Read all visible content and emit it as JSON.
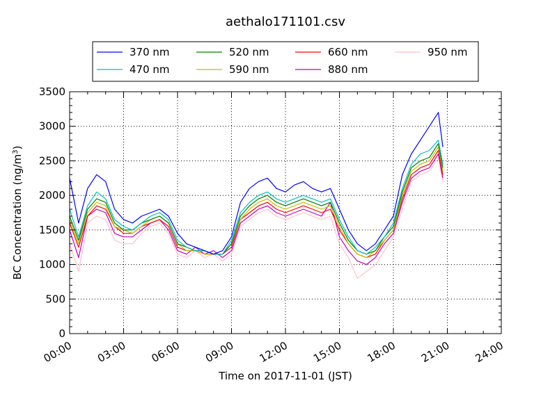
{
  "chart_data": {
    "type": "line",
    "title": "aethalo171101.csv",
    "xlabel": "Time on 2017-11-01 (JST)",
    "ylabel_main": "BC Concentration (ng/m",
    "ylabel_sup": "3",
    "ylabel_close": ")",
    "xlim_hours": [
      0,
      24
    ],
    "ylim": [
      0,
      3500
    ],
    "x_ticks": [
      "00:00",
      "03:00",
      "06:00",
      "09:00",
      "12:00",
      "15:00",
      "18:00",
      "21:00",
      "24:00"
    ],
    "y_ticks": [
      "0",
      "500",
      "1000",
      "1500",
      "2000",
      "2500",
      "3000",
      "3500"
    ],
    "grid": true,
    "legend_position": "top-center",
    "x_hours": [
      0,
      0.5,
      1,
      1.5,
      2,
      2.5,
      3,
      3.5,
      4,
      4.5,
      5,
      5.5,
      6,
      6.5,
      7,
      7.5,
      8,
      8.5,
      9,
      9.5,
      10,
      10.5,
      11,
      11.5,
      12,
      12.5,
      13,
      13.5,
      14,
      14.5,
      15,
      15.5,
      16,
      16.5,
      17,
      17.5,
      18,
      18.5,
      19,
      19.5,
      20,
      20.5,
      20.75
    ],
    "series": [
      {
        "name": "370 nm",
        "color": "#0000ff",
        "values": [
          2250,
          1600,
          2100,
          2300,
          2200,
          1800,
          1650,
          1600,
          1700,
          1750,
          1800,
          1700,
          1450,
          1300,
          1250,
          1200,
          1150,
          1200,
          1400,
          1900,
          2100,
          2200,
          2250,
          2100,
          2050,
          2150,
          2200,
          2100,
          2050,
          2100,
          1800,
          1500,
          1300,
          1200,
          1300,
          1500,
          1700,
          2300,
          2600,
          2800,
          3000,
          3200,
          2700
        ]
      },
      {
        "name": "470 nm",
        "color": "#00bfbf",
        "values": [
          1800,
          1400,
          1850,
          2050,
          1950,
          1650,
          1550,
          1500,
          1600,
          1700,
          1750,
          1650,
          1350,
          1250,
          1200,
          1200,
          1150,
          1150,
          1350,
          1750,
          1900,
          2000,
          2050,
          1950,
          1900,
          1950,
          2000,
          1950,
          1900,
          1950,
          1650,
          1400,
          1200,
          1150,
          1250,
          1400,
          1600,
          2100,
          2450,
          2600,
          2650,
          2800,
          2450
        ]
      },
      {
        "name": "520 nm",
        "color": "#008000",
        "values": [
          1700,
          1350,
          1800,
          1950,
          1900,
          1600,
          1500,
          1500,
          1600,
          1650,
          1700,
          1600,
          1300,
          1250,
          1200,
          1200,
          1150,
          1150,
          1300,
          1700,
          1850,
          1950,
          2000,
          1900,
          1850,
          1900,
          1950,
          1900,
          1850,
          1900,
          1600,
          1350,
          1200,
          1150,
          1200,
          1400,
          1550,
          2050,
          2400,
          2500,
          2550,
          2750,
          2400
        ]
      },
      {
        "name": "590 nm",
        "color": "#bfbf00",
        "values": [
          1650,
          1300,
          1750,
          1900,
          1850,
          1550,
          1500,
          1450,
          1550,
          1650,
          1700,
          1600,
          1300,
          1200,
          1200,
          1150,
          1150,
          1150,
          1300,
          1650,
          1800,
          1900,
          1950,
          1850,
          1800,
          1850,
          1900,
          1850,
          1800,
          1850,
          1550,
          1300,
          1150,
          1100,
          1200,
          1350,
          1500,
          2000,
          2350,
          2450,
          2500,
          2700,
          2350
        ]
      },
      {
        "name": "660 nm",
        "color": "#ff0000",
        "values": [
          1600,
          1250,
          1700,
          1850,
          1800,
          1550,
          1450,
          1450,
          1550,
          1600,
          1650,
          1550,
          1250,
          1200,
          1200,
          1150,
          1150,
          1150,
          1250,
          1650,
          1750,
          1850,
          1900,
          1800,
          1750,
          1800,
          1850,
          1800,
          1750,
          1800,
          1500,
          1300,
          1150,
          1100,
          1150,
          1350,
          1500,
          1950,
          2300,
          2400,
          2450,
          2650,
          2300
        ]
      },
      {
        "name": "880 nm",
        "color": "#bf00bf",
        "values": [
          1500,
          1100,
          1700,
          1800,
          1750,
          1450,
          1400,
          1400,
          1500,
          1600,
          1650,
          1500,
          1200,
          1150,
          1250,
          1150,
          1200,
          1100,
          1200,
          1600,
          1700,
          1800,
          1850,
          1750,
          1700,
          1750,
          1800,
          1750,
          1700,
          1900,
          1400,
          1200,
          1050,
          1000,
          1100,
          1300,
          1450,
          1900,
          2250,
          2350,
          2400,
          2600,
          2250
        ]
      },
      {
        "name": "950 nm",
        "color": "#ffc0cb",
        "values": [
          1300,
          900,
          1600,
          1700,
          1650,
          1350,
          1300,
          1300,
          1450,
          1550,
          1600,
          1450,
          1150,
          1100,
          1200,
          1100,
          1150,
          1050,
          1150,
          1550,
          1650,
          1750,
          1800,
          1700,
          1650,
          1700,
          1750,
          1700,
          1650,
          1700,
          1300,
          1100,
          800,
          900,
          1000,
          1200,
          1400,
          1800,
          2200,
          2300,
          2350,
          2550,
          2200
        ]
      }
    ]
  }
}
